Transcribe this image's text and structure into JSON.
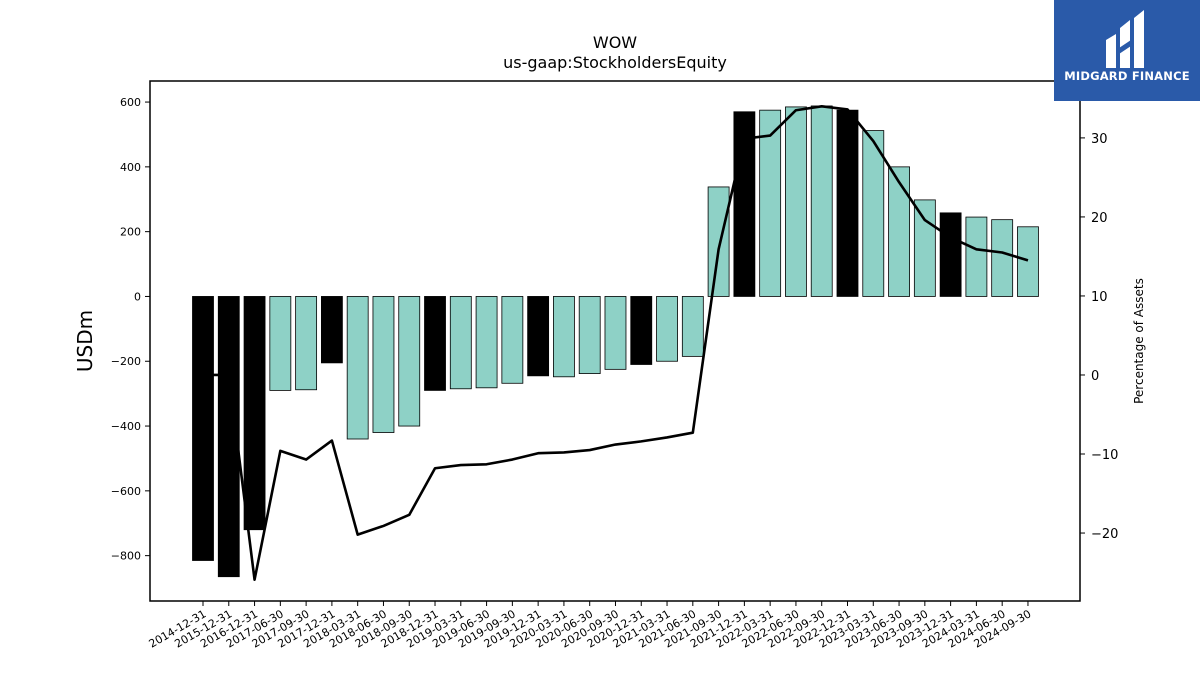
{
  "logo": {
    "text": "MIDGARD FINANCE"
  },
  "chart_data": {
    "type": "bar",
    "title": "WOW",
    "subtitle": "us-gaap:StockholdersEquity",
    "ylabel": "USDm",
    "y2label": "Percentage of Assets",
    "ylim": [
      -940,
      665
    ],
    "y2lim": [
      -28.6,
      37.2
    ],
    "yticks": [
      -800,
      -600,
      -400,
      -200,
      0,
      200,
      400,
      600
    ],
    "y2ticks": [
      -20,
      -10,
      0,
      10,
      20,
      30
    ],
    "categories": [
      "2014-12-31",
      "2015-12-31",
      "2016-12-31",
      "2017-06-30",
      "2017-09-30",
      "2017-12-31",
      "2018-03-31",
      "2018-06-30",
      "2018-09-30",
      "2018-12-31",
      "2019-03-31",
      "2019-06-30",
      "2019-09-30",
      "2019-12-31",
      "2020-03-31",
      "2020-06-30",
      "2020-09-30",
      "2020-12-31",
      "2021-03-31",
      "2021-06-30",
      "2021-09-30",
      "2021-12-31",
      "2022-03-31",
      "2022-06-30",
      "2022-09-30",
      "2022-12-31",
      "2023-03-31",
      "2023-06-30",
      "2023-09-30",
      "2023-12-31",
      "2024-03-31",
      "2024-06-30",
      "2024-09-30"
    ],
    "series": [
      {
        "type": "bar",
        "axis": "left",
        "values": [
          -815,
          -865,
          -720,
          -290,
          -288,
          -205,
          -440,
          -420,
          -400,
          -290,
          -285,
          -282,
          -268,
          -245,
          -248,
          -238,
          -225,
          -210,
          -200,
          -185,
          338,
          570,
          575,
          585,
          588,
          575,
          512,
          400,
          298,
          258,
          245,
          237,
          215
        ],
        "colors": [
          "#000000",
          "#000000",
          "#000000",
          "#8ed1c6",
          "#8ed1c6",
          "#000000",
          "#8ed1c6",
          "#8ed1c6",
          "#8ed1c6",
          "#000000",
          "#8ed1c6",
          "#8ed1c6",
          "#8ed1c6",
          "#000000",
          "#8ed1c6",
          "#8ed1c6",
          "#8ed1c6",
          "#000000",
          "#8ed1c6",
          "#8ed1c6",
          "#8ed1c6",
          "#000000",
          "#8ed1c6",
          "#8ed1c6",
          "#8ed1c6",
          "#000000",
          "#8ed1c6",
          "#8ed1c6",
          "#8ed1c6",
          "#000000",
          "#8ed1c6",
          "#8ed1c6",
          "#8ed1c6"
        ]
      },
      {
        "type": "line",
        "axis": "right",
        "color": "#000000",
        "values": [
          0,
          0,
          -25.9,
          -9.6,
          -10.7,
          -8.3,
          -20.2,
          -19.1,
          -17.7,
          -11.8,
          -11.4,
          -11.3,
          -10.7,
          -9.9,
          -9.8,
          -9.5,
          -8.8,
          -8.4,
          -7.9,
          -7.3,
          15.9,
          29.9,
          30.3,
          33.5,
          34.0,
          33.6,
          29.6,
          24.4,
          19.6,
          17.4,
          15.9,
          15.5,
          14.5
        ]
      }
    ],
    "grid": false,
    "legend": "none"
  }
}
